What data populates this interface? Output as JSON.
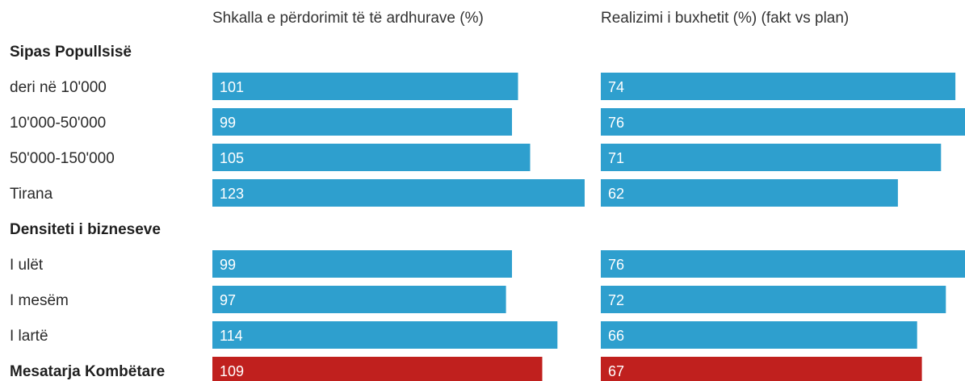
{
  "chart_data": {
    "type": "bar",
    "orientation": "horizontal",
    "panels": [
      {
        "title": "Shkalla e përdorimit të të ardhurave (%)",
        "xlim": [
          0,
          123
        ]
      },
      {
        "title": "Realizimi i buxhetit (%) (fakt vs plan)",
        "xlim": [
          0,
          76
        ]
      }
    ],
    "rows": [
      {
        "kind": "group",
        "label": "Sipas Popullsisë"
      },
      {
        "kind": "item",
        "label": "deri në 10'000",
        "values": [
          101,
          74
        ],
        "highlight": false
      },
      {
        "kind": "item",
        "label": "10'000-50'000",
        "values": [
          99,
          76
        ],
        "highlight": false
      },
      {
        "kind": "item",
        "label": "50'000-150'000",
        "values": [
          105,
          71
        ],
        "highlight": false
      },
      {
        "kind": "item",
        "label": "Tirana",
        "values": [
          123,
          62
        ],
        "highlight": false
      },
      {
        "kind": "group",
        "label": "Densiteti i bizneseve"
      },
      {
        "kind": "item",
        "label": "I ulët",
        "values": [
          99,
          76
        ],
        "highlight": false
      },
      {
        "kind": "item",
        "label": "I mesëm",
        "values": [
          97,
          72
        ],
        "highlight": false
      },
      {
        "kind": "item",
        "label": "I lartë",
        "values": [
          114,
          66
        ],
        "highlight": false
      },
      {
        "kind": "item",
        "label": "Mesatarja Kombëtare",
        "values": [
          109,
          67
        ],
        "highlight": true
      }
    ],
    "colors": {
      "bar": "#2e9fce",
      "highlight": "#c0201e"
    },
    "grid": false,
    "legend": "none"
  }
}
